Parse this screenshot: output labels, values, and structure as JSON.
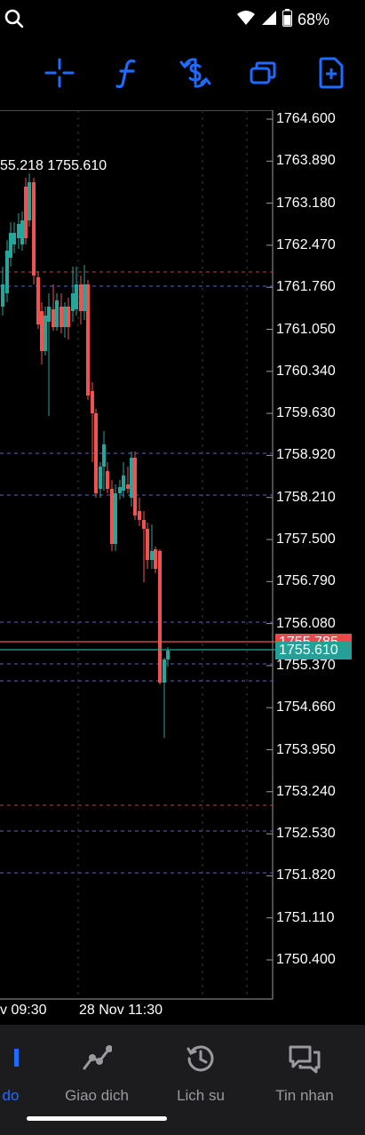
{
  "status_bar": {
    "battery": "68%",
    "icons": [
      "search-icon",
      "wifi-icon",
      "cell-signal-icon",
      "battery-icon"
    ]
  },
  "toolbar": {
    "icons": [
      "crosshair-icon",
      "function-icon",
      "currency-exchange-icon",
      "window-icon",
      "add-document-icon"
    ],
    "accent": "#1e6bff"
  },
  "chart": {
    "price_axis": [
      "1764.600",
      "1763.890",
      "1763.180",
      "1762.470",
      "1761.760",
      "1761.050",
      "1760.340",
      "1759.630",
      "1758.920",
      "1758.210",
      "1757.500",
      "1756.790",
      "1756.080",
      "1755.370",
      "1754.660",
      "1753.950",
      "1753.240",
      "1752.530",
      "1751.820",
      "1751.110",
      "1750.400"
    ],
    "ohlc_text": "55.218 1755.610",
    "ask_label": "1755.785",
    "bid_label": "1755.610",
    "time_labels": [
      "v 09:30",
      "28 Nov 11:30"
    ],
    "colors": {
      "bull": "#26a69a",
      "bear": "#ef5350",
      "ask_line": "#ef5350",
      "bid_line": "#26a69a",
      "grid": "#3a3a3a",
      "level_blue": "#5468c8",
      "level_red": "#c43b3b"
    }
  },
  "bottom_nav": {
    "items": [
      {
        "label": "do",
        "icon": "chart-icon",
        "active": true
      },
      {
        "label": "Giao dich",
        "icon": "trade-icon",
        "active": false
      },
      {
        "label": "Lich su",
        "icon": "history-icon",
        "active": false
      },
      {
        "label": "Tin nhan",
        "icon": "messages-icon",
        "active": false
      }
    ]
  }
}
